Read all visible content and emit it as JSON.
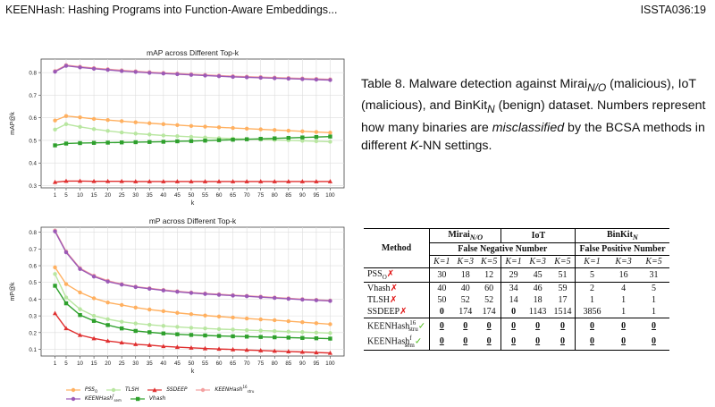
{
  "header": {
    "title": "KEENHash: Hashing Programs into Function-Aware Embeddings...",
    "page": "ISSTA036:19"
  },
  "caption": {
    "prefix": "Table 8.  Malware detection against Mirai",
    "mirai_sub": "N/O",
    "part2": " (malicious), IoT (malicious), and BinKit",
    "binkit_sub": "N",
    "part3": " (benign) dataset. Numbers represent how many binaries are ",
    "italic": "misclassified",
    "part4": " by the BCSA methods in different ",
    "k": "K",
    "part5": "-NN settings."
  },
  "table": {
    "method_header": "Method",
    "group_mirai": "Mirai",
    "group_mirai_sub": "N/O",
    "group_iot": "IoT",
    "group_binkit": "BinKit",
    "group_binkit_sub": "N",
    "fn_header": "False Negative Number",
    "fp_header": "False Positive Number",
    "k_labels": [
      "K=1",
      "K=3",
      "K=5",
      "K=1",
      "K=3",
      "K=5",
      "K=1",
      "K=3",
      "K=5"
    ],
    "rows": [
      {
        "method": "PSS",
        "sub": "O",
        "mark": "✗",
        "values": [
          "30",
          "18",
          "12",
          "29",
          "45",
          "51",
          "5",
          "16",
          "31"
        ]
      },
      {
        "method": "Vhash",
        "sub": "",
        "mark": "✗",
        "values": [
          "40",
          "40",
          "60",
          "34",
          "46",
          "59",
          "2",
          "4",
          "5"
        ]
      },
      {
        "method": "TLSH",
        "sub": "",
        "mark": "✗",
        "values": [
          "50",
          "52",
          "52",
          "14",
          "18",
          "17",
          "1",
          "1",
          "1"
        ]
      },
      {
        "method": "SSDEEP",
        "sub": "",
        "mark": "✗",
        "values": [
          "0",
          "174",
          "174",
          "0",
          "1143",
          "1514",
          "3856",
          "1",
          "1"
        ]
      },
      {
        "method": "KEENHash",
        "sup": "16",
        "sub": "stru",
        "mark": "✓",
        "values": [
          "0",
          "0",
          "0",
          "0",
          "0",
          "0",
          "0",
          "0",
          "0"
        ]
      },
      {
        "method": "KEENHash",
        "sup": "f",
        "sub": "sem",
        "mark": "✓",
        "values": [
          "0",
          "0",
          "0",
          "0",
          "0",
          "0",
          "0",
          "0",
          "0"
        ]
      }
    ]
  },
  "legend": {
    "items": [
      {
        "label": "PSS",
        "sub": "O",
        "color": "#ffb060",
        "marker": "circle"
      },
      {
        "label": "TLSH",
        "sub": "",
        "color": "#b8e6a0",
        "marker": "circle"
      },
      {
        "label": "SSDEEP",
        "sub": "",
        "color": "#e03030",
        "marker": "triangle"
      },
      {
        "label": "KEENHash",
        "sub": "stru",
        "sup": "16",
        "color": "#f4a0a0",
        "marker": "circle"
      },
      {
        "label": "KEENHash",
        "sub": "sem",
        "sup": "f",
        "color": "#9b59b6",
        "marker": "circle"
      },
      {
        "label": "Vhash",
        "sub": "",
        "color": "#2ea02c",
        "marker": "square"
      }
    ]
  },
  "chart_data": [
    {
      "type": "line",
      "title": "mAP across Different Top-k",
      "xlabel": "k",
      "ylabel": "mAP@k",
      "x": [
        1,
        5,
        10,
        15,
        20,
        25,
        30,
        35,
        40,
        45,
        50,
        55,
        60,
        65,
        70,
        75,
        80,
        85,
        90,
        95,
        100
      ],
      "ylim": [
        0.29,
        0.86
      ],
      "yticks": [
        0.3,
        0.4,
        0.5,
        0.6,
        0.7,
        0.8
      ],
      "grid": true,
      "series": [
        {
          "name": "PSS_O",
          "color": "#ffb060",
          "marker": "circle",
          "values": [
            0.588,
            0.608,
            0.602,
            0.595,
            0.59,
            0.585,
            0.58,
            0.576,
            0.572,
            0.568,
            0.564,
            0.561,
            0.558,
            0.555,
            0.552,
            0.549,
            0.546,
            0.543,
            0.54,
            0.537,
            0.534
          ]
        },
        {
          "name": "TLSH",
          "color": "#b8e6a0",
          "marker": "circle",
          "values": [
            0.548,
            0.572,
            0.56,
            0.55,
            0.542,
            0.535,
            0.53,
            0.526,
            0.522,
            0.519,
            0.516,
            0.513,
            0.51,
            0.508,
            0.506,
            0.504,
            0.502,
            0.5,
            0.498,
            0.496,
            0.494
          ]
        },
        {
          "name": "Vhash",
          "color": "#2ea02c",
          "marker": "square",
          "values": [
            0.478,
            0.486,
            0.488,
            0.489,
            0.49,
            0.491,
            0.492,
            0.493,
            0.494,
            0.496,
            0.497,
            0.499,
            0.501,
            0.503,
            0.505,
            0.507,
            0.509,
            0.511,
            0.513,
            0.515,
            0.517
          ]
        },
        {
          "name": "SSDEEP",
          "color": "#e03030",
          "marker": "triangle",
          "values": [
            0.315,
            0.32,
            0.32,
            0.319,
            0.319,
            0.319,
            0.318,
            0.318,
            0.318,
            0.318,
            0.318,
            0.318,
            0.318,
            0.318,
            0.318,
            0.318,
            0.318,
            0.318,
            0.318,
            0.318,
            0.318
          ]
        },
        {
          "name": "KEENHash_stru16",
          "color": "#f4a0a0",
          "marker": "circle",
          "values": [
            0.807,
            0.833,
            0.826,
            0.82,
            0.815,
            0.81,
            0.806,
            0.802,
            0.799,
            0.796,
            0.793,
            0.79,
            0.787,
            0.784,
            0.782,
            0.78,
            0.778,
            0.776,
            0.774,
            0.772,
            0.77
          ]
        },
        {
          "name": "KEENHash_semf",
          "color": "#9b59b6",
          "marker": "circle",
          "values": [
            0.804,
            0.83,
            0.823,
            0.817,
            0.812,
            0.807,
            0.803,
            0.799,
            0.796,
            0.793,
            0.79,
            0.787,
            0.784,
            0.781,
            0.779,
            0.777,
            0.775,
            0.773,
            0.771,
            0.769,
            0.767
          ]
        }
      ]
    },
    {
      "type": "line",
      "title": "mP across Different Top-k",
      "xlabel": "k",
      "ylabel": "mP@k",
      "x": [
        1,
        5,
        10,
        15,
        20,
        25,
        30,
        35,
        40,
        45,
        50,
        55,
        60,
        65,
        70,
        75,
        80,
        85,
        90,
        95,
        100
      ],
      "ylim": [
        0.06,
        0.83
      ],
      "yticks": [
        0.1,
        0.2,
        0.3,
        0.4,
        0.5,
        0.6,
        0.7,
        0.8
      ],
      "grid": true,
      "series": [
        {
          "name": "PSS_O",
          "color": "#ffb060",
          "marker": "circle",
          "values": [
            0.59,
            0.49,
            0.44,
            0.405,
            0.38,
            0.365,
            0.35,
            0.338,
            0.328,
            0.318,
            0.31,
            0.302,
            0.296,
            0.29,
            0.284,
            0.279,
            0.274,
            0.268,
            0.262,
            0.256,
            0.25
          ]
        },
        {
          "name": "TLSH",
          "color": "#b8e6a0",
          "marker": "circle",
          "values": [
            0.55,
            0.41,
            0.34,
            0.3,
            0.28,
            0.265,
            0.255,
            0.247,
            0.24,
            0.234,
            0.229,
            0.225,
            0.221,
            0.218,
            0.215,
            0.212,
            0.209,
            0.206,
            0.203,
            0.2,
            0.197
          ]
        },
        {
          "name": "Vhash",
          "color": "#2ea02c",
          "marker": "square",
          "values": [
            0.48,
            0.375,
            0.305,
            0.27,
            0.245,
            0.225,
            0.21,
            0.202,
            0.195,
            0.19,
            0.186,
            0.183,
            0.18,
            0.178,
            0.176,
            0.174,
            0.172,
            0.17,
            0.168,
            0.166,
            0.164
          ]
        },
        {
          "name": "SSDEEP",
          "color": "#e03030",
          "marker": "triangle",
          "values": [
            0.315,
            0.225,
            0.185,
            0.165,
            0.15,
            0.14,
            0.13,
            0.125,
            0.118,
            0.113,
            0.109,
            0.105,
            0.102,
            0.099,
            0.096,
            0.093,
            0.09,
            0.087,
            0.084,
            0.081,
            0.078
          ]
        },
        {
          "name": "KEENHash_stru16",
          "color": "#f4a0a0",
          "marker": "circle",
          "values": [
            0.81,
            0.685,
            0.585,
            0.54,
            0.51,
            0.49,
            0.475,
            0.465,
            0.455,
            0.447,
            0.44,
            0.434,
            0.429,
            0.424,
            0.42,
            0.415,
            0.41,
            0.405,
            0.4,
            0.396,
            0.392
          ]
        },
        {
          "name": "KEENHash_semf",
          "color": "#9b59b6",
          "marker": "circle",
          "values": [
            0.805,
            0.68,
            0.58,
            0.535,
            0.505,
            0.487,
            0.472,
            0.462,
            0.452,
            0.444,
            0.437,
            0.431,
            0.426,
            0.421,
            0.417,
            0.412,
            0.407,
            0.402,
            0.397,
            0.393,
            0.389
          ]
        }
      ]
    }
  ]
}
